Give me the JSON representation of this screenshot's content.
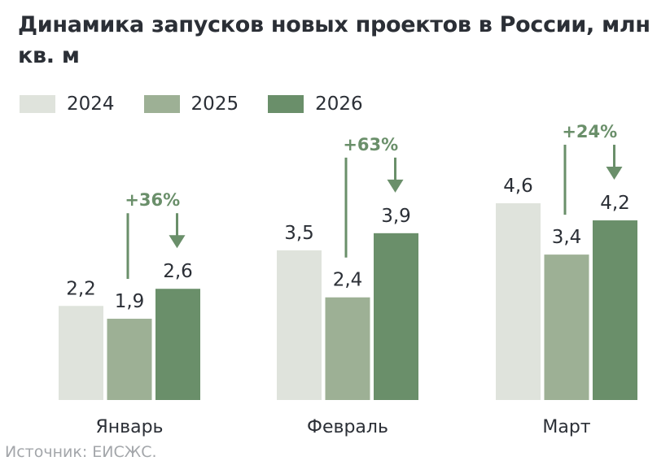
{
  "title": "Динамика запусков новых проектов в России, млн кв. м",
  "source": "Источник: ЕИСЖС.",
  "colors": {
    "2024": "#dfe3dc",
    "2025": "#9db095",
    "2026": "#6a8f6a",
    "accent": "#6a8f6a",
    "text": "#2b2f36"
  },
  "chart_data": {
    "type": "bar",
    "title": "Динамика запусков новых проектов в России, млн кв. м",
    "categories": [
      "Январь",
      "Февраль",
      "Март"
    ],
    "series": [
      {
        "name": "2024",
        "values": [
          2.2,
          3.5,
          4.6
        ],
        "labels": [
          "2,2",
          "3,5",
          "4,6"
        ]
      },
      {
        "name": "2025",
        "values": [
          1.9,
          2.4,
          3.4
        ],
        "labels": [
          "1,9",
          "2,4",
          "3,4"
        ]
      },
      {
        "name": "2026",
        "values": [
          2.6,
          3.9,
          4.2
        ],
        "labels": [
          "2,6",
          "3,9",
          "4,2"
        ]
      }
    ],
    "annotations": [
      "+36%",
      "+63%",
      "+24%"
    ],
    "legend": "top-left",
    "ylim": [
      0,
      4.6
    ],
    "grid": false
  }
}
